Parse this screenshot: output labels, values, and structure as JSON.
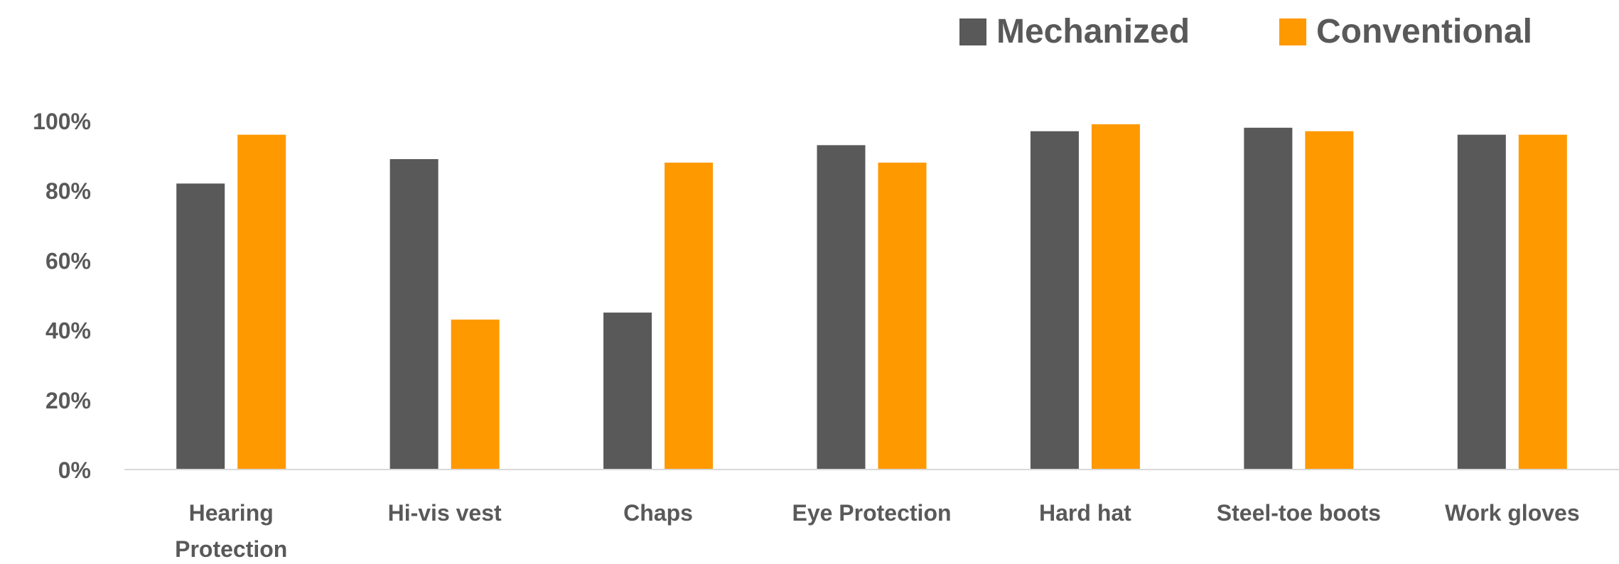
{
  "chart_data": {
    "type": "bar",
    "title": "",
    "xlabel": "",
    "ylabel": "",
    "categories": [
      "Hearing Protection",
      "Hi-vis vest",
      "Chaps",
      "Eye Protection",
      "Hard hat",
      "Steel-toe boots",
      "Work gloves"
    ],
    "series": [
      {
        "name": "Mechanized",
        "color": "#595959",
        "values": [
          82,
          89,
          45,
          93,
          97,
          98,
          96
        ]
      },
      {
        "name": "Conventional",
        "color": "#FF9900",
        "values": [
          96,
          43,
          88,
          88,
          99,
          97,
          96
        ]
      }
    ],
    "ylim": [
      0,
      100
    ],
    "yticks": [
      0,
      20,
      40,
      60,
      80,
      100
    ],
    "ytick_labels": [
      "0%",
      "20%",
      "40%",
      "60%",
      "80%",
      "100%"
    ],
    "xtick_labels": [
      [
        "Hearing",
        "Protection"
      ],
      [
        "Hi-vis vest"
      ],
      [
        "Chaps"
      ],
      [
        "Eye Protection"
      ],
      [
        "Hard hat"
      ],
      [
        "Steel-toe boots"
      ],
      [
        "Work gloves"
      ]
    ],
    "grid": false,
    "legend_position": "top-right",
    "axis_color": "#d9d9d9",
    "text_color": "#595959"
  }
}
